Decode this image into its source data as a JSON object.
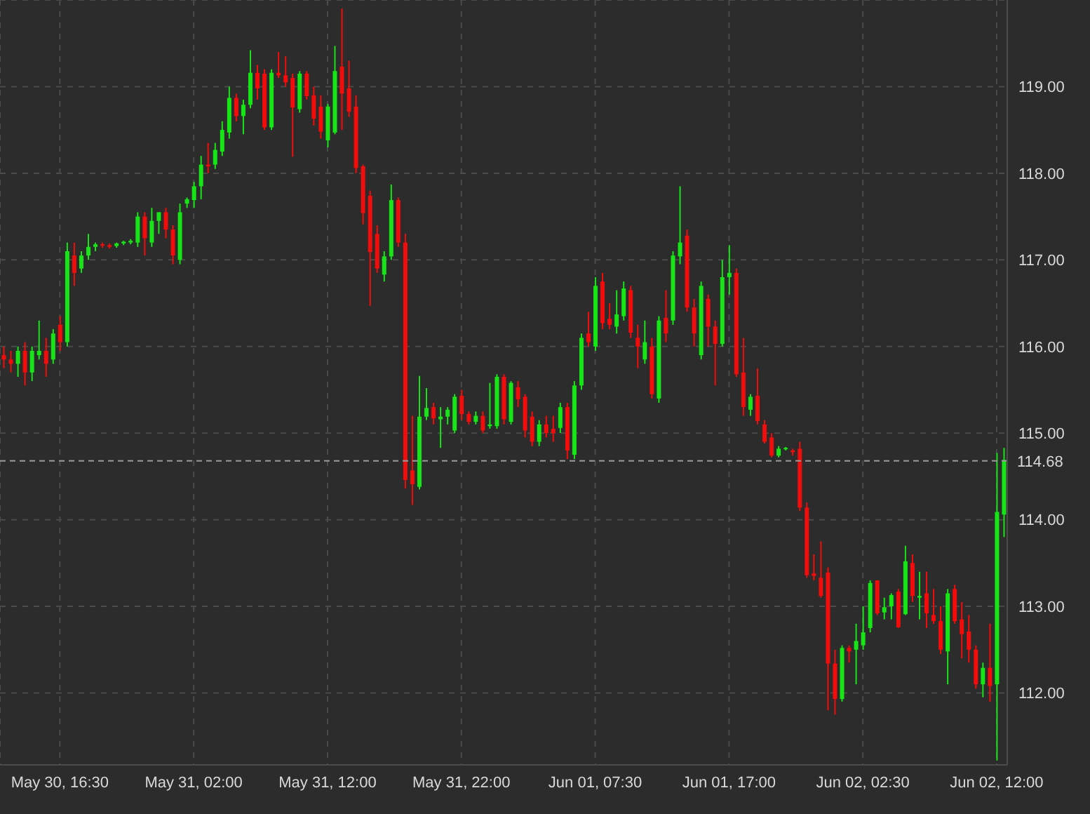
{
  "chart_data": {
    "type": "candlestick",
    "categories": [
      null,
      null,
      null,
      null,
      null,
      null,
      null,
      null,
      "May 30, 16:30",
      null,
      null,
      null,
      null,
      null,
      null,
      null,
      null,
      null,
      null,
      null,
      null,
      null,
      null,
      null,
      null,
      null,
      null,
      "May 31, 02:00",
      null,
      null,
      null,
      null,
      null,
      null,
      null,
      null,
      null,
      null,
      null,
      null,
      null,
      null,
      null,
      null,
      null,
      null,
      "May 31, 12:00",
      null,
      null,
      null,
      null,
      null,
      null,
      null,
      null,
      null,
      null,
      null,
      null,
      null,
      null,
      null,
      null,
      null,
      null,
      "May 31, 22:00",
      null,
      null,
      null,
      null,
      null,
      null,
      null,
      null,
      null,
      null,
      null,
      null,
      null,
      null,
      null,
      null,
      null,
      null,
      "Jun 01, 07:30",
      null,
      null,
      null,
      null,
      null,
      null,
      null,
      null,
      null,
      null,
      null,
      null,
      null,
      null,
      null,
      null,
      null,
      null,
      "Jun 01, 17:00",
      null,
      null,
      null,
      null,
      null,
      null,
      null,
      null,
      null,
      null,
      null,
      null,
      null,
      null,
      null,
      null,
      null,
      null,
      "Jun 02, 02:30",
      null,
      null,
      null,
      null,
      null,
      null,
      null,
      null,
      null,
      null,
      null,
      null,
      null,
      null,
      null,
      null,
      null,
      null,
      "Jun 02, 12:00",
      null
    ],
    "ohlc": [
      [
        115.9,
        116.0,
        115.75,
        115.85
      ],
      [
        115.85,
        115.95,
        115.7,
        115.8
      ],
      [
        115.8,
        116.0,
        115.65,
        115.95
      ],
      [
        115.95,
        116.05,
        115.55,
        115.7
      ],
      [
        115.7,
        116.0,
        115.6,
        115.95
      ],
      [
        115.9,
        116.3,
        115.85,
        115.95
      ],
      [
        115.95,
        116.1,
        115.65,
        115.8
      ],
      [
        115.85,
        116.2,
        115.8,
        116.15
      ],
      [
        116.25,
        116.35,
        115.95,
        116.05
      ],
      [
        116.05,
        117.2,
        116.0,
        117.1
      ],
      [
        117.05,
        117.2,
        116.7,
        116.85
      ],
      [
        116.9,
        117.1,
        116.85,
        117.05
      ],
      [
        117.05,
        117.3,
        117.0,
        117.15
      ],
      [
        117.15,
        117.2,
        117.1,
        117.18
      ],
      [
        117.18,
        117.2,
        117.14,
        117.17
      ],
      [
        117.17,
        117.19,
        117.13,
        117.15
      ],
      [
        117.16,
        117.2,
        117.14,
        117.19
      ],
      [
        117.19,
        117.22,
        117.17,
        117.21
      ],
      [
        117.2,
        117.24,
        117.18,
        117.22
      ],
      [
        117.2,
        117.55,
        117.15,
        117.5
      ],
      [
        117.5,
        117.55,
        117.05,
        117.25
      ],
      [
        117.2,
        117.6,
        117.15,
        117.45
      ],
      [
        117.45,
        117.55,
        117.3,
        117.55
      ],
      [
        117.55,
        117.6,
        117.25,
        117.35
      ],
      [
        117.35,
        117.4,
        116.95,
        117.05
      ],
      [
        117.0,
        117.65,
        116.95,
        117.55
      ],
      [
        117.65,
        117.72,
        117.6,
        117.7
      ],
      [
        117.69,
        117.9,
        117.6,
        117.85
      ],
      [
        117.85,
        118.2,
        117.7,
        118.1
      ],
      [
        118.1,
        118.35,
        118.0,
        118.08
      ],
      [
        118.1,
        118.35,
        118.05,
        118.27
      ],
      [
        118.25,
        118.6,
        118.2,
        118.5
      ],
      [
        118.47,
        119.0,
        118.4,
        118.87
      ],
      [
        118.87,
        118.92,
        118.6,
        118.66
      ],
      [
        118.66,
        118.85,
        118.45,
        118.79
      ],
      [
        118.79,
        119.42,
        118.75,
        119.16
      ],
      [
        119.16,
        119.25,
        118.85,
        118.98
      ],
      [
        119.15,
        119.2,
        118.5,
        118.53
      ],
      [
        118.53,
        119.2,
        118.5,
        119.16
      ],
      [
        119.16,
        119.4,
        119.1,
        119.13
      ],
      [
        119.13,
        119.35,
        119.0,
        119.05
      ],
      [
        119.1,
        119.15,
        118.19,
        118.76
      ],
      [
        118.74,
        119.18,
        118.7,
        119.15
      ],
      [
        119.15,
        119.18,
        118.85,
        118.89
      ],
      [
        118.9,
        119.0,
        118.55,
        118.63
      ],
      [
        118.77,
        118.9,
        118.4,
        118.48
      ],
      [
        118.38,
        118.8,
        118.3,
        118.77
      ],
      [
        118.47,
        119.47,
        118.45,
        119.18
      ],
      [
        119.23,
        119.9,
        118.5,
        118.92
      ],
      [
        118.98,
        119.3,
        118.65,
        118.71
      ],
      [
        118.77,
        118.9,
        118.0,
        118.06
      ],
      [
        118.08,
        118.1,
        117.41,
        117.54
      ],
      [
        117.74,
        117.8,
        116.47,
        117.09
      ],
      [
        117.3,
        117.4,
        116.85,
        116.9
      ],
      [
        116.83,
        117.1,
        116.75,
        117.04
      ],
      [
        117.04,
        117.87,
        117.0,
        117.69
      ],
      [
        117.69,
        117.72,
        117.15,
        117.2
      ],
      [
        117.2,
        117.3,
        114.36,
        114.46
      ],
      [
        114.57,
        115.2,
        114.17,
        114.41
      ],
      [
        114.38,
        115.66,
        114.35,
        115.19
      ],
      [
        115.19,
        115.52,
        115.15,
        115.29
      ],
      [
        115.3,
        115.35,
        115.1,
        115.17
      ],
      [
        115.16,
        115.3,
        114.83,
        115.19
      ],
      [
        115.19,
        115.3,
        115.1,
        115.27
      ],
      [
        115.03,
        115.45,
        115.0,
        115.42
      ],
      [
        115.43,
        115.5,
        115.15,
        115.22
      ],
      [
        115.22,
        115.25,
        115.1,
        115.13
      ],
      [
        115.13,
        115.25,
        115.1,
        115.2
      ],
      [
        115.2,
        115.25,
        115.0,
        115.03
      ],
      [
        115.08,
        115.58,
        115.05,
        115.1
      ],
      [
        115.08,
        115.68,
        115.05,
        115.65
      ],
      [
        115.65,
        115.68,
        115.1,
        115.16
      ],
      [
        115.13,
        115.6,
        115.1,
        115.58
      ],
      [
        115.53,
        115.6,
        115.3,
        115.39
      ],
      [
        115.42,
        115.45,
        114.95,
        115.03
      ],
      [
        115.19,
        115.25,
        114.85,
        114.9
      ],
      [
        114.9,
        115.15,
        114.85,
        115.1
      ],
      [
        115.1,
        115.2,
        114.95,
        115.0
      ],
      [
        115.05,
        115.2,
        114.9,
        115.0
      ],
      [
        115.06,
        115.35,
        115.0,
        115.3
      ],
      [
        115.3,
        115.35,
        114.7,
        114.8
      ],
      [
        114.75,
        115.6,
        114.7,
        115.55
      ],
      [
        115.55,
        116.15,
        115.5,
        116.1
      ],
      [
        116.15,
        116.4,
        116.0,
        116.05
      ],
      [
        116.0,
        116.8,
        115.95,
        116.7
      ],
      [
        116.75,
        116.85,
        116.2,
        116.27
      ],
      [
        116.32,
        116.5,
        116.2,
        116.25
      ],
      [
        116.23,
        116.65,
        116.15,
        116.37
      ],
      [
        116.35,
        116.75,
        116.3,
        116.67
      ],
      [
        116.65,
        116.7,
        116.1,
        116.16
      ],
      [
        116.1,
        116.25,
        115.75,
        116.0
      ],
      [
        115.85,
        116.3,
        115.8,
        116.05
      ],
      [
        116.0,
        116.1,
        115.4,
        115.45
      ],
      [
        115.4,
        116.35,
        115.35,
        116.3
      ],
      [
        116.33,
        116.65,
        116.05,
        116.15
      ],
      [
        116.3,
        117.1,
        116.25,
        117.05
      ],
      [
        117.04,
        117.85,
        116.95,
        117.2
      ],
      [
        117.28,
        117.35,
        116.4,
        116.45
      ],
      [
        116.45,
        116.55,
        116.0,
        116.15
      ],
      [
        115.9,
        116.75,
        115.85,
        116.7
      ],
      [
        116.55,
        116.6,
        116.0,
        116.23
      ],
      [
        116.23,
        116.3,
        115.55,
        116.03
      ],
      [
        116.03,
        117.0,
        116.0,
        116.8
      ],
      [
        116.8,
        117.17,
        116.6,
        116.85
      ],
      [
        116.85,
        116.9,
        115.65,
        115.68
      ],
      [
        115.7,
        116.1,
        115.2,
        115.3
      ],
      [
        115.27,
        115.45,
        115.2,
        115.42
      ],
      [
        115.43,
        115.75,
        115.1,
        115.14
      ],
      [
        115.1,
        115.15,
        114.88,
        114.9
      ],
      [
        114.95,
        115.0,
        114.72,
        114.74
      ],
      [
        114.74,
        114.85,
        114.72,
        114.82
      ],
      [
        114.82,
        114.84,
        114.8,
        114.83
      ],
      [
        114.8,
        114.82,
        114.74,
        114.78
      ],
      [
        114.82,
        114.9,
        114.1,
        114.14
      ],
      [
        114.14,
        114.2,
        113.33,
        113.36
      ],
      [
        113.38,
        113.6,
        113.3,
        113.35
      ],
      [
        113.33,
        113.75,
        113.1,
        113.12
      ],
      [
        113.39,
        113.45,
        111.8,
        112.34
      ],
      [
        112.34,
        112.5,
        111.75,
        111.93
      ],
      [
        111.93,
        112.55,
        111.9,
        112.52
      ],
      [
        112.52,
        112.55,
        112.35,
        112.48
      ],
      [
        112.5,
        112.8,
        112.1,
        112.6
      ],
      [
        112.55,
        113.0,
        112.5,
        112.7
      ],
      [
        112.75,
        113.3,
        112.7,
        113.27
      ],
      [
        113.3,
        113.3,
        112.9,
        112.92
      ],
      [
        112.93,
        113.1,
        112.85,
        112.99
      ],
      [
        113.0,
        113.15,
        112.85,
        113.13
      ],
      [
        113.17,
        113.2,
        112.75,
        112.76
      ],
      [
        112.91,
        113.7,
        112.9,
        113.52
      ],
      [
        113.5,
        113.6,
        113.05,
        113.12
      ],
      [
        113.1,
        113.4,
        112.85,
        113.12
      ],
      [
        113.15,
        113.4,
        112.75,
        112.92
      ],
      [
        112.9,
        113.2,
        112.8,
        112.83
      ],
      [
        112.83,
        113.0,
        112.45,
        112.5
      ],
      [
        112.48,
        113.2,
        112.1,
        113.15
      ],
      [
        113.2,
        113.25,
        112.8,
        112.83
      ],
      [
        112.85,
        113.05,
        112.4,
        112.68
      ],
      [
        112.71,
        112.9,
        112.35,
        112.5
      ],
      [
        112.5,
        112.55,
        112.05,
        112.1
      ],
      [
        112.1,
        112.35,
        111.95,
        112.29
      ],
      [
        112.29,
        112.8,
        111.9,
        112.08
      ],
      [
        112.1,
        114.77,
        111.22,
        114.09
      ],
      [
        114.06,
        114.83,
        113.8,
        114.69
      ]
    ],
    "colors": [
      "#f20c0c",
      "#f20c0c",
      "#18e518",
      "#f20c0c",
      "#18e518",
      "#18e518",
      "#f20c0c",
      "#18e518",
      "#f20c0c",
      "#18e518",
      "#f20c0c",
      "#18e518",
      "#18e518",
      "#18e518",
      "#f20c0c",
      "#f20c0c",
      "#18e518",
      "#18e518",
      "#18e518",
      "#18e518",
      "#f20c0c",
      "#18e518",
      "#18e518",
      "#f20c0c",
      "#f20c0c",
      "#18e518",
      "#18e518",
      "#18e518",
      "#18e518",
      "#f20c0c",
      "#18e518",
      "#18e518",
      "#18e518",
      "#f20c0c",
      "#18e518",
      "#18e518",
      "#f20c0c",
      "#f20c0c",
      "#18e518",
      "#f20c0c",
      "#f20c0c",
      "#f20c0c",
      "#18e518",
      "#f20c0c",
      "#f20c0c",
      "#f20c0c",
      "#18e518",
      "#18e518",
      "#f20c0c",
      "#f20c0c",
      "#f20c0c",
      "#f20c0c",
      "#f20c0c",
      "#f20c0c",
      "#18e518",
      "#18e518",
      "#f20c0c",
      "#f20c0c",
      "#f20c0c",
      "#18e518",
      "#18e518",
      "#f20c0c",
      "#18e518",
      "#18e518",
      "#18e518",
      "#f20c0c",
      "#f20c0c",
      "#18e518",
      "#f20c0c",
      "#18e518",
      "#18e518",
      "#f20c0c",
      "#18e518",
      "#f20c0c",
      "#f20c0c",
      "#f20c0c",
      "#18e518",
      "#f20c0c",
      "#f20c0c",
      "#18e518",
      "#f20c0c",
      "#18e518",
      "#18e518",
      "#f20c0c",
      "#18e518",
      "#f20c0c",
      "#f20c0c",
      "#18e518",
      "#18e518",
      "#f20c0c",
      "#f20c0c",
      "#18e518",
      "#f20c0c",
      "#18e518",
      "#f20c0c",
      "#18e518",
      "#18e518",
      "#f20c0c",
      "#f20c0c",
      "#18e518",
      "#f20c0c",
      "#f20c0c",
      "#18e518",
      "#18e518",
      "#f20c0c",
      "#f20c0c",
      "#18e518",
      "#f20c0c",
      "#f20c0c",
      "#f20c0c",
      "#18e518",
      "#18e518",
      "#f20c0c",
      "#f20c0c",
      "#f20c0c",
      "#f20c0c",
      "#f20c0c",
      "#f20c0c",
      "#f20c0c",
      "#18e518",
      "#f20c0c",
      "#18e518",
      "#18e518",
      "#18e518",
      "#f20c0c",
      "#18e518",
      "#18e518",
      "#f20c0c",
      "#18e518",
      "#f20c0c",
      "#18e518",
      "#f20c0c",
      "#f20c0c",
      "#f20c0c",
      "#18e518",
      "#f20c0c",
      "#f20c0c",
      "#f20c0c",
      "#f20c0c",
      "#18e518",
      "#f20c0c",
      "#18e518",
      "#18e518"
    ],
    "ylim": [
      111.17,
      120.0
    ],
    "yticks": [
      {
        "value": 112,
        "label": "112.00"
      },
      {
        "value": 113,
        "label": "113.00"
      },
      {
        "value": 114,
        "label": "114.00"
      },
      {
        "value": 115,
        "label": "115.00"
      },
      {
        "value": 116,
        "label": "116.00"
      },
      {
        "value": 117,
        "label": "117.00"
      },
      {
        "value": 118,
        "label": "118.00"
      },
      {
        "value": 119,
        "label": "119.00"
      }
    ],
    "grid": true,
    "ref_lines": [
      {
        "axis": "y",
        "value": 114.68,
        "label": "114.68",
        "color": "#9a9a9a",
        "line_style": "dashed"
      }
    ]
  }
}
